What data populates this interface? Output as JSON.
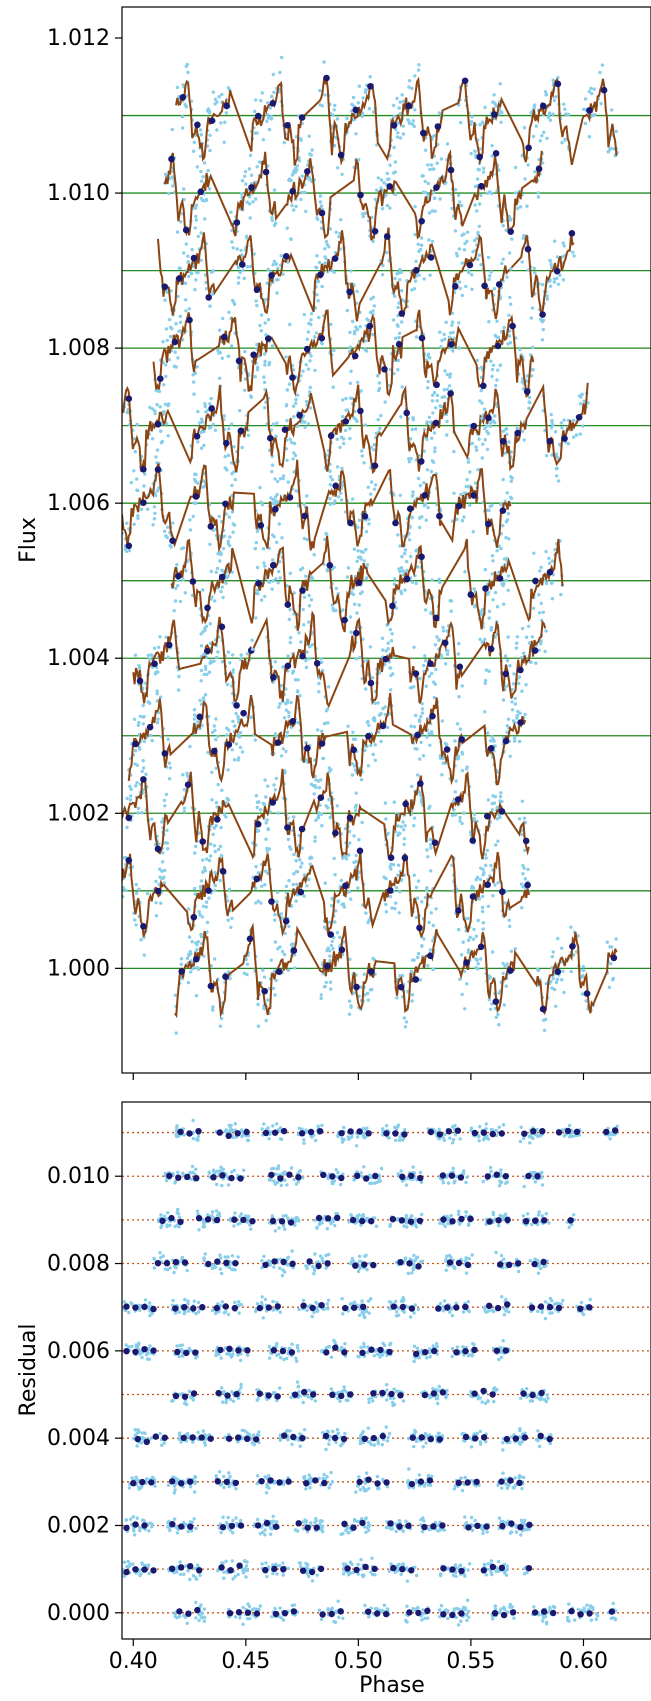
{
  "chart_data": [
    {
      "type": "scatter",
      "panel": "flux",
      "xlabel": "",
      "ylabel": "Flux",
      "xlim": [
        0.395,
        0.63
      ],
      "ylim": [
        0.99865,
        1.0124
      ],
      "x_ticks": [
        0.4,
        0.45,
        0.5,
        0.55,
        0.6
      ],
      "y_ticks": [
        1.0,
        1.002,
        1.004,
        1.006,
        1.008,
        1.01,
        1.012
      ],
      "y_tick_labels": [
        "1.000",
        "1.002",
        "1.004",
        "1.006",
        "1.008",
        "1.010",
        "1.012"
      ],
      "grid": false,
      "legend": "none",
      "colors": {
        "raw": "#87ceeb",
        "binned": "#191970",
        "model": "#8b4513",
        "baseline": "#228b22"
      },
      "rows": [
        {
          "offset": 1.0,
          "x_range": [
            0.4185,
            0.615
          ]
        },
        {
          "offset": 1.001,
          "x_range": [
            0.395,
            0.576
          ]
        },
        {
          "offset": 1.002,
          "x_range": [
            0.395,
            0.576
          ]
        },
        {
          "offset": 1.003,
          "x_range": [
            0.398,
            0.575
          ]
        },
        {
          "offset": 1.004,
          "x_range": [
            0.4,
            0.586
          ]
        },
        {
          "offset": 1.005,
          "x_range": [
            0.417,
            0.591
          ]
        },
        {
          "offset": 1.006,
          "x_range": [
            0.395,
            0.568
          ]
        },
        {
          "offset": 1.007,
          "x_range": [
            0.395,
            0.604
          ]
        },
        {
          "offset": 1.008,
          "x_range": [
            0.409,
            0.584
          ]
        },
        {
          "offset": 1.009,
          "x_range": [
            0.411,
            0.596
          ]
        },
        {
          "offset": 1.01,
          "x_range": [
            0.414,
            0.582
          ]
        },
        {
          "offset": 1.011,
          "x_range": [
            0.419,
            0.615
          ]
        }
      ]
    },
    {
      "type": "scatter",
      "panel": "residual",
      "xlabel": "Phase",
      "ylabel": "Residual",
      "xlim": [
        0.395,
        0.63
      ],
      "ylim": [
        -0.0006,
        0.0117
      ],
      "x_ticks": [
        0.4,
        0.45,
        0.5,
        0.55,
        0.6
      ],
      "x_tick_labels": [
        "0.40",
        "0.45",
        "0.50",
        "0.55",
        "0.60"
      ],
      "y_ticks": [
        0.0,
        0.002,
        0.004,
        0.006,
        0.008,
        0.01
      ],
      "y_tick_labels": [
        "0.000",
        "0.002",
        "0.004",
        "0.006",
        "0.008",
        "0.010"
      ],
      "grid": false,
      "legend": "none",
      "colors": {
        "raw": "#87ceeb",
        "binned": "#191970",
        "zero_line": "#c0561d"
      },
      "rows": [
        {
          "offset": 0.0
        },
        {
          "offset": 0.001
        },
        {
          "offset": 0.002
        },
        {
          "offset": 0.003
        },
        {
          "offset": 0.004
        },
        {
          "offset": 0.005
        },
        {
          "offset": 0.006
        },
        {
          "offset": 0.007
        },
        {
          "offset": 0.008
        },
        {
          "offset": 0.009
        },
        {
          "offset": 0.01
        },
        {
          "offset": 0.011
        }
      ]
    }
  ]
}
